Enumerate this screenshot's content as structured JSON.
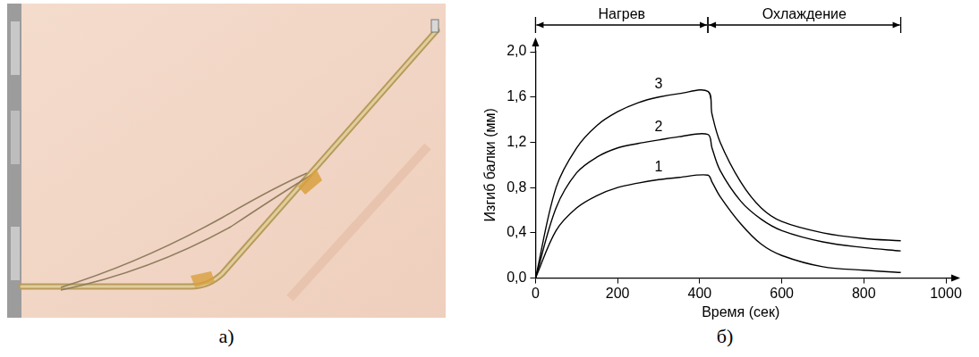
{
  "panel_labels": [
    "а)",
    "б)"
  ],
  "chart_data": {
    "type": "line",
    "x_label": "Время (сек)",
    "y_label": "Изгиб балки (мм)",
    "x": [
      0,
      50,
      100,
      150,
      200,
      250,
      300,
      350,
      420,
      430,
      450,
      500,
      550,
      600,
      700,
      800,
      890
    ],
    "series": [
      {
        "name": "1",
        "color": "#000000",
        "values": [
          0,
          0.42,
          0.62,
          0.73,
          0.8,
          0.84,
          0.87,
          0.89,
          0.91,
          0.85,
          0.72,
          0.48,
          0.3,
          0.2,
          0.1,
          0.07,
          0.05
        ]
      },
      {
        "name": "2",
        "color": "#000000",
        "values": [
          0,
          0.62,
          0.93,
          1.07,
          1.15,
          1.19,
          1.22,
          1.25,
          1.27,
          1.15,
          0.95,
          0.68,
          0.52,
          0.42,
          0.32,
          0.27,
          0.24
        ]
      },
      {
        "name": "3",
        "color": "#000000",
        "values": [
          0,
          0.8,
          1.15,
          1.35,
          1.47,
          1.55,
          1.6,
          1.63,
          1.65,
          1.45,
          1.2,
          0.85,
          0.62,
          0.5,
          0.4,
          0.35,
          0.33
        ]
      }
    ],
    "xlim": [
      0,
      1000
    ],
    "xticks": [
      0,
      200,
      400,
      600,
      800,
      1000
    ],
    "ylim": [
      0,
      2
    ],
    "yticks": [
      {
        "value": 0,
        "label": "0,0"
      },
      {
        "value": 0.4,
        "label": "0,4"
      },
      {
        "value": 0.8,
        "label": "0,8"
      },
      {
        "value": 1.2,
        "label": "1,2"
      },
      {
        "value": 1.6,
        "label": "1,6"
      },
      {
        "value": 2,
        "label": "2,0"
      }
    ],
    "grid": false,
    "phases": [
      {
        "label": "Нагрев",
        "from": 0,
        "to": 420
      },
      {
        "label": "Охлаждение",
        "from": 420,
        "to": 890
      }
    ]
  }
}
